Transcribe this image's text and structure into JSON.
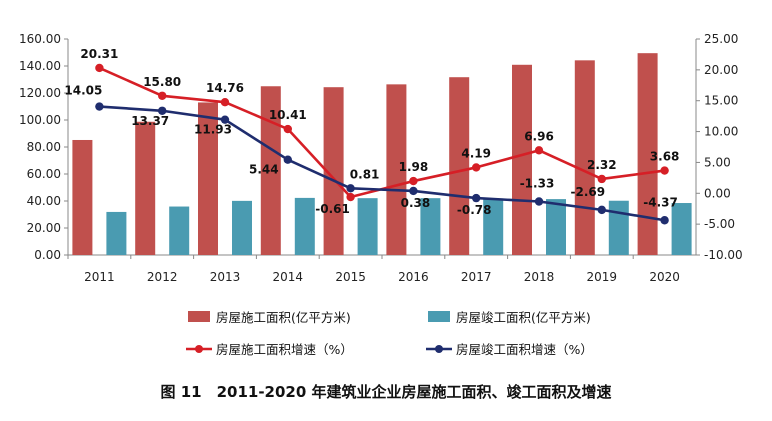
{
  "chart_data": {
    "type": "bar",
    "title": "",
    "categories": [
      "2011",
      "2012",
      "2013",
      "2014",
      "2015",
      "2016",
      "2017",
      "2018",
      "2019",
      "2020"
    ],
    "series": [
      {
        "name": "房屋施工面积(亿平方米)",
        "kind": "bar",
        "axis": "left",
        "color": "#c0504d",
        "values": [
          85.2,
          98.7,
          113.0,
          125.0,
          124.3,
          126.4,
          131.7,
          140.9,
          144.2,
          149.5
        ]
      },
      {
        "name": "房屋竣工面积(亿平方米)",
        "kind": "bar",
        "axis": "left",
        "color": "#4a9bb1",
        "values": [
          31.9,
          35.9,
          40.1,
          42.3,
          42.1,
          42.1,
          41.9,
          41.4,
          40.2,
          38.5
        ]
      },
      {
        "name": "房屋施工面积增速（%）",
        "kind": "line",
        "axis": "right",
        "color": "#d61f26",
        "values": [
          20.31,
          15.8,
          14.76,
          10.41,
          -0.61,
          1.98,
          4.19,
          6.96,
          2.32,
          3.68
        ],
        "labels": [
          "20.31",
          "15.80",
          "14.76",
          "10.41",
          "-0.61",
          "1.98",
          "4.19",
          "6.96",
          "2.32",
          "3.68"
        ]
      },
      {
        "name": "房屋竣工面积增速（%）",
        "kind": "line",
        "axis": "right",
        "color": "#1f2d6e",
        "values": [
          14.05,
          13.37,
          11.93,
          5.44,
          0.81,
          0.38,
          -0.78,
          -1.33,
          -2.69,
          -4.37
        ],
        "labels": [
          "14.05",
          "13.37",
          "11.93",
          "5.44",
          "0.81",
          "0.38",
          "-0.78",
          "-1.33",
          "-2.69",
          "-4.37"
        ]
      }
    ],
    "left_axis": {
      "ylim": [
        0,
        160
      ],
      "ticks": [
        "0.00",
        "20.00",
        "40.00",
        "60.00",
        "80.00",
        "100.00",
        "120.00",
        "140.00",
        "160.00"
      ]
    },
    "right_axis": {
      "ylim": [
        -10,
        25
      ],
      "ticks": [
        "-10.00",
        "-5.00",
        "0.00",
        "5.00",
        "10.00",
        "15.00",
        "20.00",
        "25.00"
      ]
    },
    "grid": false,
    "legend_position": "bottom"
  },
  "caption": "图 11　2011-2020 年建筑业企业房屋施工面积、竣工面积及增速"
}
